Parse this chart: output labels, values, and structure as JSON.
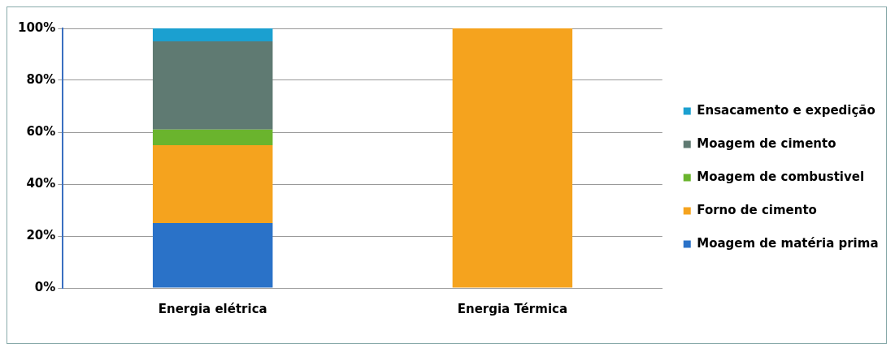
{
  "chart_data": {
    "type": "bar",
    "stacked": true,
    "categories": [
      "Energia elétrica",
      "Energia Térmica"
    ],
    "series": [
      {
        "name": "Moagem de matéria prima",
        "color": "#2a72c8",
        "values": [
          25,
          0
        ]
      },
      {
        "name": "Forno de cimento",
        "color": "#f5a31e",
        "values": [
          30,
          100
        ]
      },
      {
        "name": "Moagem de combustivel",
        "color": "#6ab42d",
        "values": [
          6,
          0
        ]
      },
      {
        "name": "Moagem de cimento",
        "color": "#5f7a72",
        "values": [
          34,
          0
        ]
      },
      {
        "name": "Ensacamento e expedição",
        "color": "#1ba0d0",
        "values": [
          5,
          0
        ]
      }
    ],
    "ylim": [
      0,
      100
    ],
    "yticks": [
      {
        "value": 0,
        "label": "0%"
      },
      {
        "value": 20,
        "label": "20%"
      },
      {
        "value": 40,
        "label": "40%"
      },
      {
        "value": 60,
        "label": "60%"
      },
      {
        "value": 80,
        "label": "80%"
      },
      {
        "value": 100,
        "label": "100%"
      }
    ],
    "grid": "y",
    "legend": "right"
  }
}
